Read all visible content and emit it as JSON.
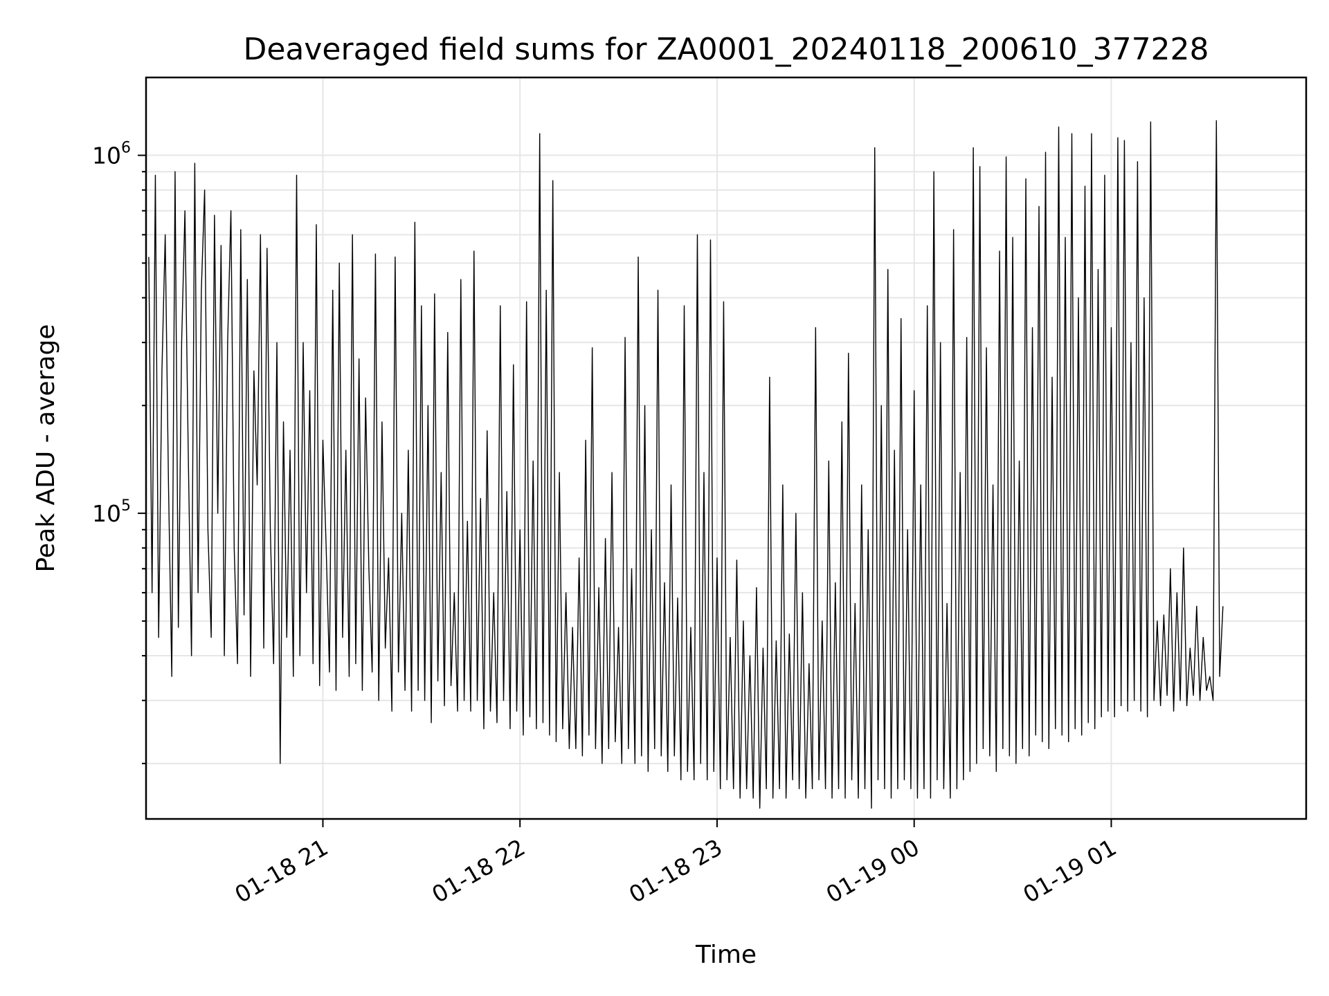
{
  "chart_data": {
    "type": "line",
    "title": "Deaveraged field sums for ZA0001_20240118_200610_377228",
    "xlabel": "Time",
    "ylabel": "Peak ADU - average",
    "y_scale": "log",
    "grid": true,
    "line_color": "#000000",
    "grid_color": "#e6e6e6",
    "xlim": [
      "2024-01-18 20:06:10",
      "2024-01-19 01:59:20"
    ],
    "ylim": [
      14000,
      1650000
    ],
    "x_ticks": [
      {
        "value": "2024-01-18 21:00",
        "label": "01-18 21"
      },
      {
        "value": "2024-01-18 22:00",
        "label": "01-18 22"
      },
      {
        "value": "2024-01-18 23:00",
        "label": "01-18 23"
      },
      {
        "value": "2024-01-19 00:00",
        "label": "01-19 00"
      },
      {
        "value": "2024-01-19 01:00",
        "label": "01-19 01"
      }
    ],
    "y_ticks": [
      {
        "value": 100000,
        "base": "10",
        "exp": "5"
      },
      {
        "value": 1000000,
        "base": "10",
        "exp": "6"
      }
    ],
    "series": [
      {
        "sampling": "every 1 min from 2024-01-18 20:07",
        "values": [
          520000,
          60000,
          880000,
          45000,
          250000,
          600000,
          120000,
          35000,
          900000,
          48000,
          300000,
          700000,
          150000,
          40000,
          950000,
          60000,
          420000,
          800000,
          90000,
          45000,
          680000,
          100000,
          560000,
          40000,
          300000,
          700000,
          80000,
          38000,
          620000,
          52000,
          450000,
          35000,
          250000,
          120000,
          600000,
          42000,
          550000,
          90000,
          38000,
          300000,
          20000,
          180000,
          45000,
          150000,
          35000,
          880000,
          40000,
          300000,
          60000,
          220000,
          38000,
          640000,
          33000,
          160000,
          80000,
          36000,
          420000,
          32000,
          500000,
          45000,
          150000,
          35000,
          600000,
          38000,
          270000,
          32000,
          210000,
          70000,
          36000,
          530000,
          30000,
          180000,
          42000,
          75000,
          28000,
          520000,
          36000,
          100000,
          32000,
          150000,
          28000,
          650000,
          32000,
          380000,
          30000,
          200000,
          26000,
          410000,
          34000,
          130000,
          29000,
          320000,
          33000,
          60000,
          28000,
          450000,
          30000,
          95000,
          28000,
          540000,
          30000,
          110000,
          25000,
          170000,
          28000,
          60000,
          26000,
          380000,
          30000,
          115000,
          25000,
          260000,
          28000,
          90000,
          24000,
          390000,
          27000,
          140000,
          25000,
          1150000,
          26000,
          420000,
          24000,
          850000,
          23000,
          130000,
          25000,
          60000,
          22000,
          48000,
          22000,
          75000,
          21000,
          160000,
          24000,
          290000,
          22000,
          62000,
          20000,
          85000,
          22000,
          130000,
          23000,
          48000,
          20000,
          310000,
          22000,
          70000,
          20000,
          520000,
          21000,
          200000,
          19000,
          90000,
          22000,
          420000,
          21000,
          64000,
          19000,
          120000,
          21000,
          58000,
          18000,
          380000,
          19000,
          48000,
          18000,
          600000,
          20000,
          130000,
          18000,
          580000,
          19000,
          75000,
          17000,
          390000,
          18000,
          45000,
          17000,
          74000,
          16000,
          50000,
          17000,
          40000,
          16000,
          62000,
          15000,
          42000,
          17000,
          240000,
          16000,
          44000,
          17000,
          120000,
          16000,
          46000,
          18000,
          100000,
          17000,
          60000,
          16000,
          38000,
          17000,
          330000,
          18000,
          50000,
          17000,
          140000,
          16000,
          64000,
          17000,
          180000,
          16000,
          280000,
          18000,
          56000,
          16000,
          120000,
          17000,
          90000,
          15000,
          1050000,
          18000,
          200000,
          17000,
          480000,
          16000,
          150000,
          17000,
          350000,
          18000,
          90000,
          17000,
          220000,
          16000,
          120000,
          17000,
          380000,
          16000,
          900000,
          18000,
          300000,
          17000,
          56000,
          16000,
          620000,
          17000,
          130000,
          18000,
          310000,
          19000,
          1050000,
          20000,
          930000,
          22000,
          290000,
          21000,
          120000,
          19000,
          540000,
          22000,
          990000,
          21000,
          590000,
          20000,
          140000,
          22000,
          860000,
          21000,
          330000,
          24000,
          720000,
          23000,
          1020000,
          22000,
          240000,
          25000,
          1200000,
          24000,
          590000,
          23000,
          1150000,
          25000,
          400000,
          24000,
          820000,
          26000,
          1150000,
          25000,
          480000,
          27000,
          880000,
          28000,
          330000,
          27000,
          1120000,
          29000,
          1100000,
          28000,
          300000,
          30000,
          960000,
          28000,
          400000,
          27000,
          1240000,
          30000,
          50000,
          29000,
          52000,
          31000,
          70000,
          28000,
          60000,
          30000,
          80000,
          29000,
          42000,
          31000,
          55000,
          30000,
          45000,
          32000,
          35000,
          30000,
          1250000,
          35000,
          55000
        ]
      }
    ]
  }
}
